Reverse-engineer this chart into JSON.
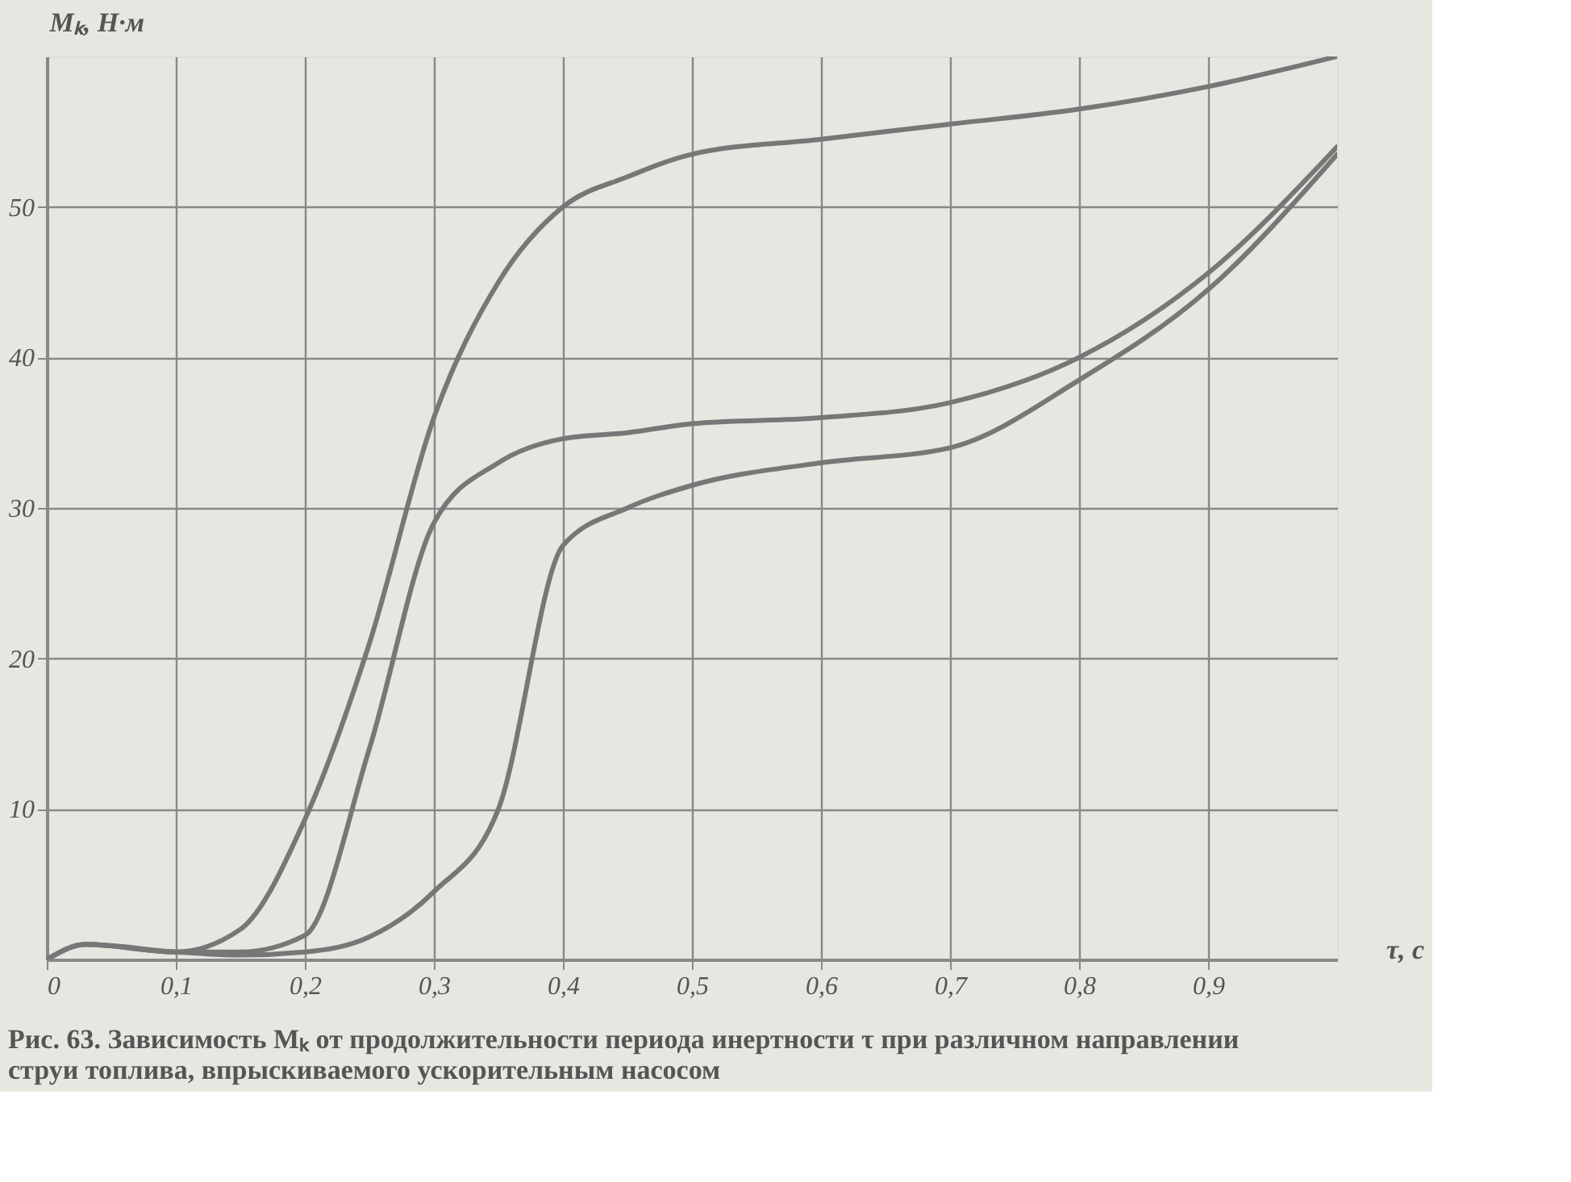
{
  "chart_data": {
    "type": "line",
    "x": [
      0,
      0.03,
      0.1,
      0.15,
      0.2,
      0.25,
      0.3,
      0.35,
      0.4,
      0.45,
      0.5,
      0.6,
      0.7,
      0.8,
      0.9,
      1.0
    ],
    "series": [
      {
        "color": "#777777",
        "values": [
          0,
          1,
          0.5,
          2,
          9.3,
          21,
          36,
          45,
          50,
          52,
          53.5,
          54.5,
          55.5,
          56.5,
          58,
          60
        ]
      },
      {
        "color": "#777777",
        "values": [
          0,
          1,
          0.5,
          0.5,
          1.6,
          14,
          29,
          33,
          34.6,
          35,
          35.6,
          36,
          37,
          40,
          45.6,
          54
        ]
      },
      {
        "color": "#777777",
        "values": [
          0,
          1,
          0.5,
          0.3,
          0.5,
          1.5,
          4.5,
          10,
          27.5,
          30,
          31.5,
          33,
          34,
          38.5,
          44.5,
          53.5
        ]
      }
    ],
    "xlabel": "τ, с",
    "ylabel": "Mₖ, Н·м",
    "xlim": [
      0,
      1.0
    ],
    "ylim": [
      0,
      60
    ],
    "xticks": [
      0,
      {
        "value": 0.1,
        "label": "0,1"
      },
      {
        "value": 0.2,
        "label": "0,2"
      },
      {
        "value": 0.3,
        "label": "0,3"
      },
      {
        "value": 0.4,
        "label": "0,4"
      },
      {
        "value": 0.5,
        "label": "0,5"
      },
      {
        "value": 0.6,
        "label": "0,6"
      },
      {
        "value": 0.7,
        "label": "0,7"
      },
      {
        "value": 0.8,
        "label": "0,8"
      },
      {
        "value": 0.9,
        "label": "0,9"
      }
    ],
    "yticks": [
      10,
      20,
      30,
      40,
      50
    ],
    "grid": true,
    "marker": "none",
    "line_style": "solid",
    "annotations": [
      "Рис. 63. Зависимость Mₖ от продолжительности периода инертности τ при различном направлении струи топлива, впрыскиваемого ускорительным насосом"
    ]
  }
}
